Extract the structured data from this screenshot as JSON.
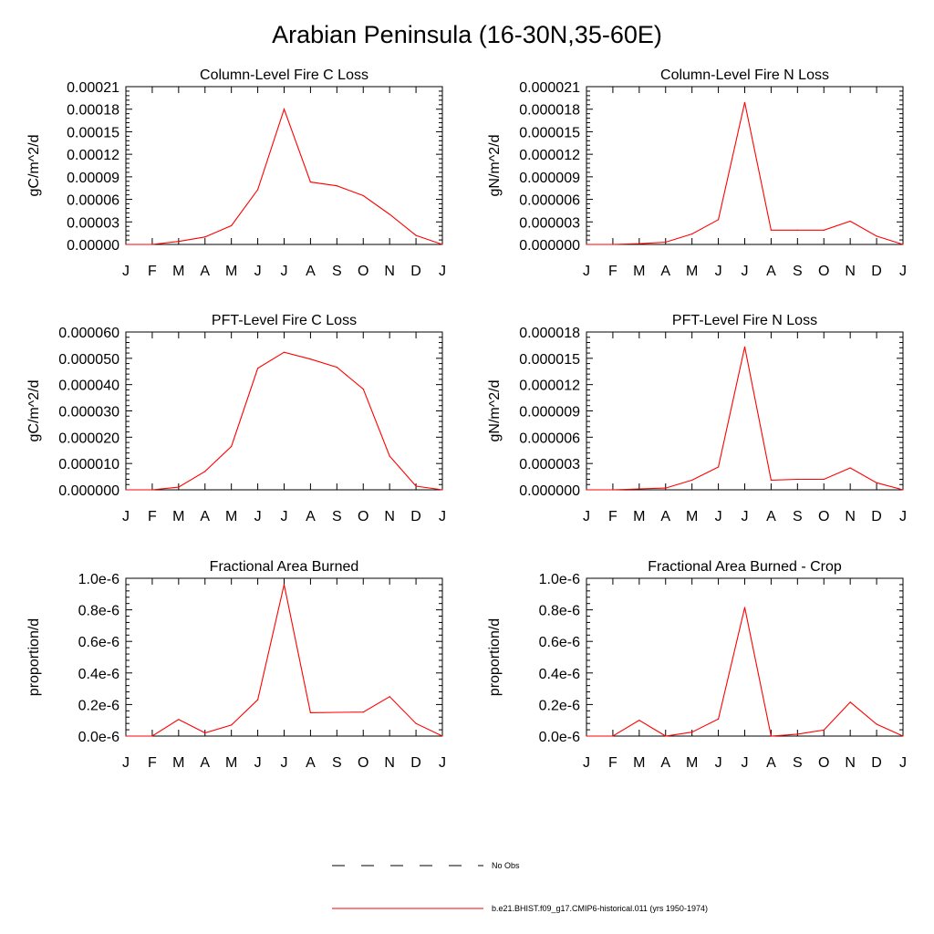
{
  "title": "Arabian Peninsula (16-30N,35-60E)",
  "legend": {
    "items": [
      {
        "label": "No Obs",
        "color": "#000000",
        "style": "dashed"
      },
      {
        "label": "b.e21.BHIST.f09_g17.CMIP6-historical.011 (yrs 1950-1974)",
        "color": "#ff0000",
        "style": "solid"
      }
    ]
  },
  "chart_data": [
    {
      "type": "line",
      "title": "Column-Level Fire C Loss",
      "ylabel": "gC/m^2/d",
      "categories": [
        "J",
        "F",
        "M",
        "A",
        "M",
        "J",
        "J",
        "A",
        "S",
        "O",
        "N",
        "D",
        "J"
      ],
      "ylim": [
        0,
        0.00021
      ],
      "yticks": [
        "0.00000",
        "0.00003",
        "0.00006",
        "0.00009",
        "0.00012",
        "0.00015",
        "0.00018",
        "0.00021"
      ],
      "series": [
        {
          "color": "#ff0000",
          "values": [
            0.0,
            0.0,
            4e-06,
            1e-05,
            2.5e-05,
            7.3e-05,
            0.00018,
            8.3e-05,
            7.8e-05,
            6.5e-05,
            4e-05,
            1.2e-05,
            0.0
          ]
        }
      ]
    },
    {
      "type": "line",
      "title": "Column-Level Fire N Loss",
      "ylabel": "gN/m^2/d",
      "categories": [
        "J",
        "F",
        "M",
        "A",
        "M",
        "J",
        "J",
        "A",
        "S",
        "O",
        "N",
        "D",
        "J"
      ],
      "ylim": [
        0,
        2.1e-05
      ],
      "yticks": [
        "0.000000",
        "0.000003",
        "0.000006",
        "0.000009",
        "0.000012",
        "0.000015",
        "0.000018",
        "0.000021"
      ],
      "series": [
        {
          "color": "#ff0000",
          "values": [
            0.0,
            0.0,
            1e-07,
            3e-07,
            1.4e-06,
            3.3e-06,
            1.89e-05,
            1.9e-06,
            1.9e-06,
            1.9e-06,
            3.1e-06,
            1.1e-06,
            0.0
          ]
        }
      ]
    },
    {
      "type": "line",
      "title": "PFT-Level Fire C Loss",
      "ylabel": "gC/m^2/d",
      "categories": [
        "J",
        "F",
        "M",
        "A",
        "M",
        "J",
        "J",
        "A",
        "S",
        "O",
        "N",
        "D",
        "J"
      ],
      "ylim": [
        0,
        6e-05
      ],
      "yticks": [
        "0.000000",
        "0.000010",
        "0.000020",
        "0.000030",
        "0.000040",
        "0.000050",
        "0.000060"
      ],
      "series": [
        {
          "color": "#ff0000",
          "values": [
            0.0,
            0.0,
            1e-06,
            7e-06,
            1.65e-05,
            4.62e-05,
            5.23e-05,
            4.97e-05,
            4.66e-05,
            3.83e-05,
            1.28e-05,
            1.4e-06,
            0.0
          ]
        }
      ]
    },
    {
      "type": "line",
      "title": "PFT-Level Fire N Loss",
      "ylabel": "gN/m^2/d",
      "categories": [
        "J",
        "F",
        "M",
        "A",
        "M",
        "J",
        "J",
        "A",
        "S",
        "O",
        "N",
        "D",
        "J"
      ],
      "ylim": [
        0,
        1.8e-05
      ],
      "yticks": [
        "0.000000",
        "0.000003",
        "0.000006",
        "0.000009",
        "0.000012",
        "0.000015",
        "0.000018"
      ],
      "series": [
        {
          "color": "#ff0000",
          "values": [
            0.0,
            0.0,
            1e-07,
            2e-07,
            1.1e-06,
            2.6e-06,
            1.63e-05,
            1.1e-06,
            1.2e-06,
            1.2e-06,
            2.5e-06,
            8e-07,
            0.0
          ]
        }
      ]
    },
    {
      "type": "line",
      "title": "Fractional Area Burned",
      "ylabel": "proportion/d",
      "categories": [
        "J",
        "F",
        "M",
        "A",
        "M",
        "J",
        "J",
        "A",
        "S",
        "O",
        "N",
        "D",
        "J"
      ],
      "ylim": [
        0,
        1e-06
      ],
      "yticks": [
        "0.0e-6",
        "0.2e-6",
        "0.4e-6",
        "0.6e-6",
        "0.8e-6",
        "1.0e-6"
      ],
      "series": [
        {
          "color": "#ff0000",
          "values": [
            0.0,
            0.0,
            1.05e-07,
            2e-08,
            7e-08,
            2.3e-07,
            9.6e-07,
            1.48e-07,
            1.5e-07,
            1.52e-07,
            2.5e-07,
            8e-08,
            0.0
          ]
        }
      ]
    },
    {
      "type": "line",
      "title": "Fractional Area Burned - Crop",
      "ylabel": "proportion/d",
      "categories": [
        "J",
        "F",
        "M",
        "A",
        "M",
        "J",
        "J",
        "A",
        "S",
        "O",
        "N",
        "D",
        "J"
      ],
      "ylim": [
        0,
        1e-06
      ],
      "yticks": [
        "0.0e-6",
        "0.2e-6",
        "0.4e-6",
        "0.6e-6",
        "0.8e-6",
        "1.0e-6"
      ],
      "series": [
        {
          "color": "#ff0000",
          "values": [
            0.0,
            0.0,
            1e-07,
            0.0,
            2.5e-08,
            1.08e-07,
            8.15e-07,
            0.0,
            1.2e-08,
            3.8e-08,
            2.15e-07,
            7.5e-08,
            0.0
          ]
        }
      ]
    }
  ]
}
